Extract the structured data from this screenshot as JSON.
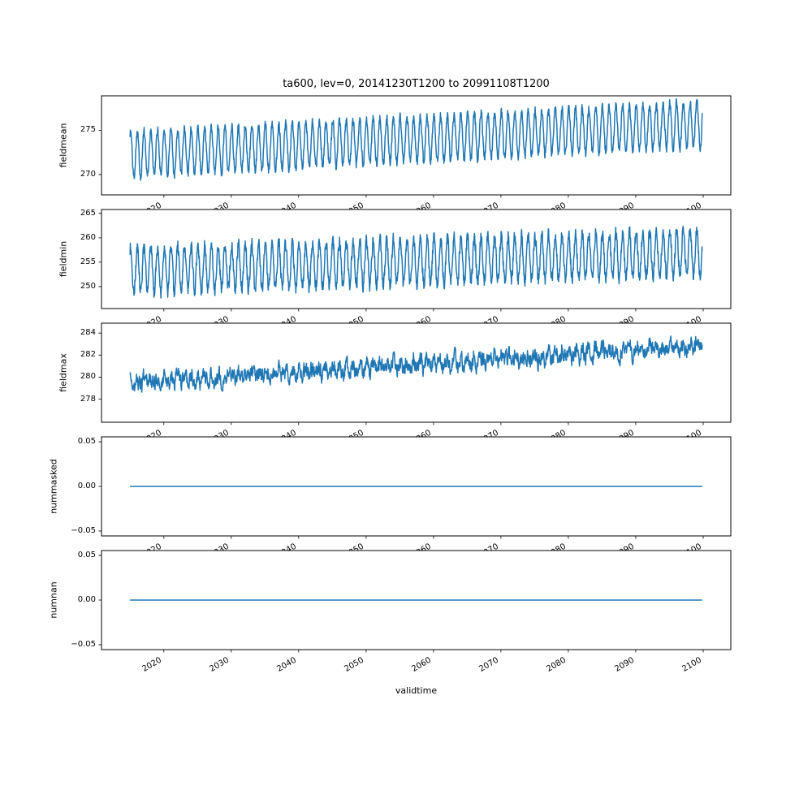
{
  "chart_data": {
    "type": "line",
    "title": "ta600, lev=0, 20141230T1200 to 20991108T1200",
    "xlabel": "validtime",
    "x_start": 2014.99,
    "x_end": 2099.86,
    "xlim": [
      2010.75,
      2104.1
    ],
    "xticks": [
      2020,
      2030,
      2040,
      2050,
      2060,
      2070,
      2080,
      2090,
      2100
    ],
    "line_color": "#1f77b4",
    "grid": false,
    "legend": "none",
    "subplots": [
      {
        "ylabel": "fieldmean",
        "ylim": [
          267.7,
          278.9
        ],
        "ytick_values": [
          270,
          275
        ],
        "ytick_labels": [
          "270",
          "275"
        ],
        "description": "Annual oscillation of amplitude ~2.5 around a mean rising from ~272.3 in 2015 to ~275.7 in 2100; values range ~268.5 to ~279",
        "model": {
          "kind": "seasonal",
          "trend_start": 272.3,
          "trend_end": 275.7,
          "amplitude": 2.55,
          "phase": 0.06,
          "noise": 0.5,
          "ar": 0.15,
          "samples_per_year": 24,
          "seed": 101
        }
      },
      {
        "ylabel": "fieldmin",
        "ylim": [
          245.5,
          265.8
        ],
        "ytick_values": [
          250,
          255,
          260,
          265
        ],
        "ytick_labels": [
          "250",
          "255",
          "260",
          "265"
        ],
        "description": "Noisy annual oscillation of amplitude ~4.6 around a mean rising from ~253.3 to ~257.0; values range ~247 to ~264.5",
        "model": {
          "kind": "seasonal",
          "trend_start": 253.3,
          "trend_end": 257.0,
          "amplitude": 4.6,
          "phase": 0.06,
          "noise": 1.3,
          "ar": 0.15,
          "samples_per_year": 24,
          "seed": 202
        }
      },
      {
        "ylabel": "fieldmax",
        "ylim": [
          275.9,
          284.9
        ],
        "ytick_values": [
          278,
          280,
          282,
          284
        ],
        "ytick_labels": [
          "278",
          "280",
          "282",
          "284"
        ],
        "description": "Noise-dominated series rising from ~279.4 to ~282.9 with weak seasonal cycle; values range ~277.5 to ~284.2",
        "model": {
          "kind": "seasonal",
          "trend_start": 279.4,
          "trend_end": 282.9,
          "amplitude": 0.35,
          "phase": 0.06,
          "noise": 0.6,
          "ar": 0.55,
          "samples_per_year": 24,
          "seed": 303
        }
      },
      {
        "ylabel": "nummasked",
        "ylim": [
          -0.0555,
          0.0555
        ],
        "ytick_values": [
          -0.05,
          0,
          0.05
        ],
        "ytick_labels": [
          "−0.05",
          "0.00",
          "0.05"
        ],
        "description": "Constant 0 for the whole period",
        "model": {
          "kind": "constant",
          "value": 0
        }
      },
      {
        "ylabel": "numnan",
        "ylim": [
          -0.0555,
          0.0555
        ],
        "ytick_values": [
          -0.05,
          0,
          0.05
        ],
        "ytick_labels": [
          "−0.05",
          "0.00",
          "0.05"
        ],
        "description": "Constant 0 for the whole period",
        "model": {
          "kind": "constant",
          "value": 0
        }
      }
    ]
  }
}
